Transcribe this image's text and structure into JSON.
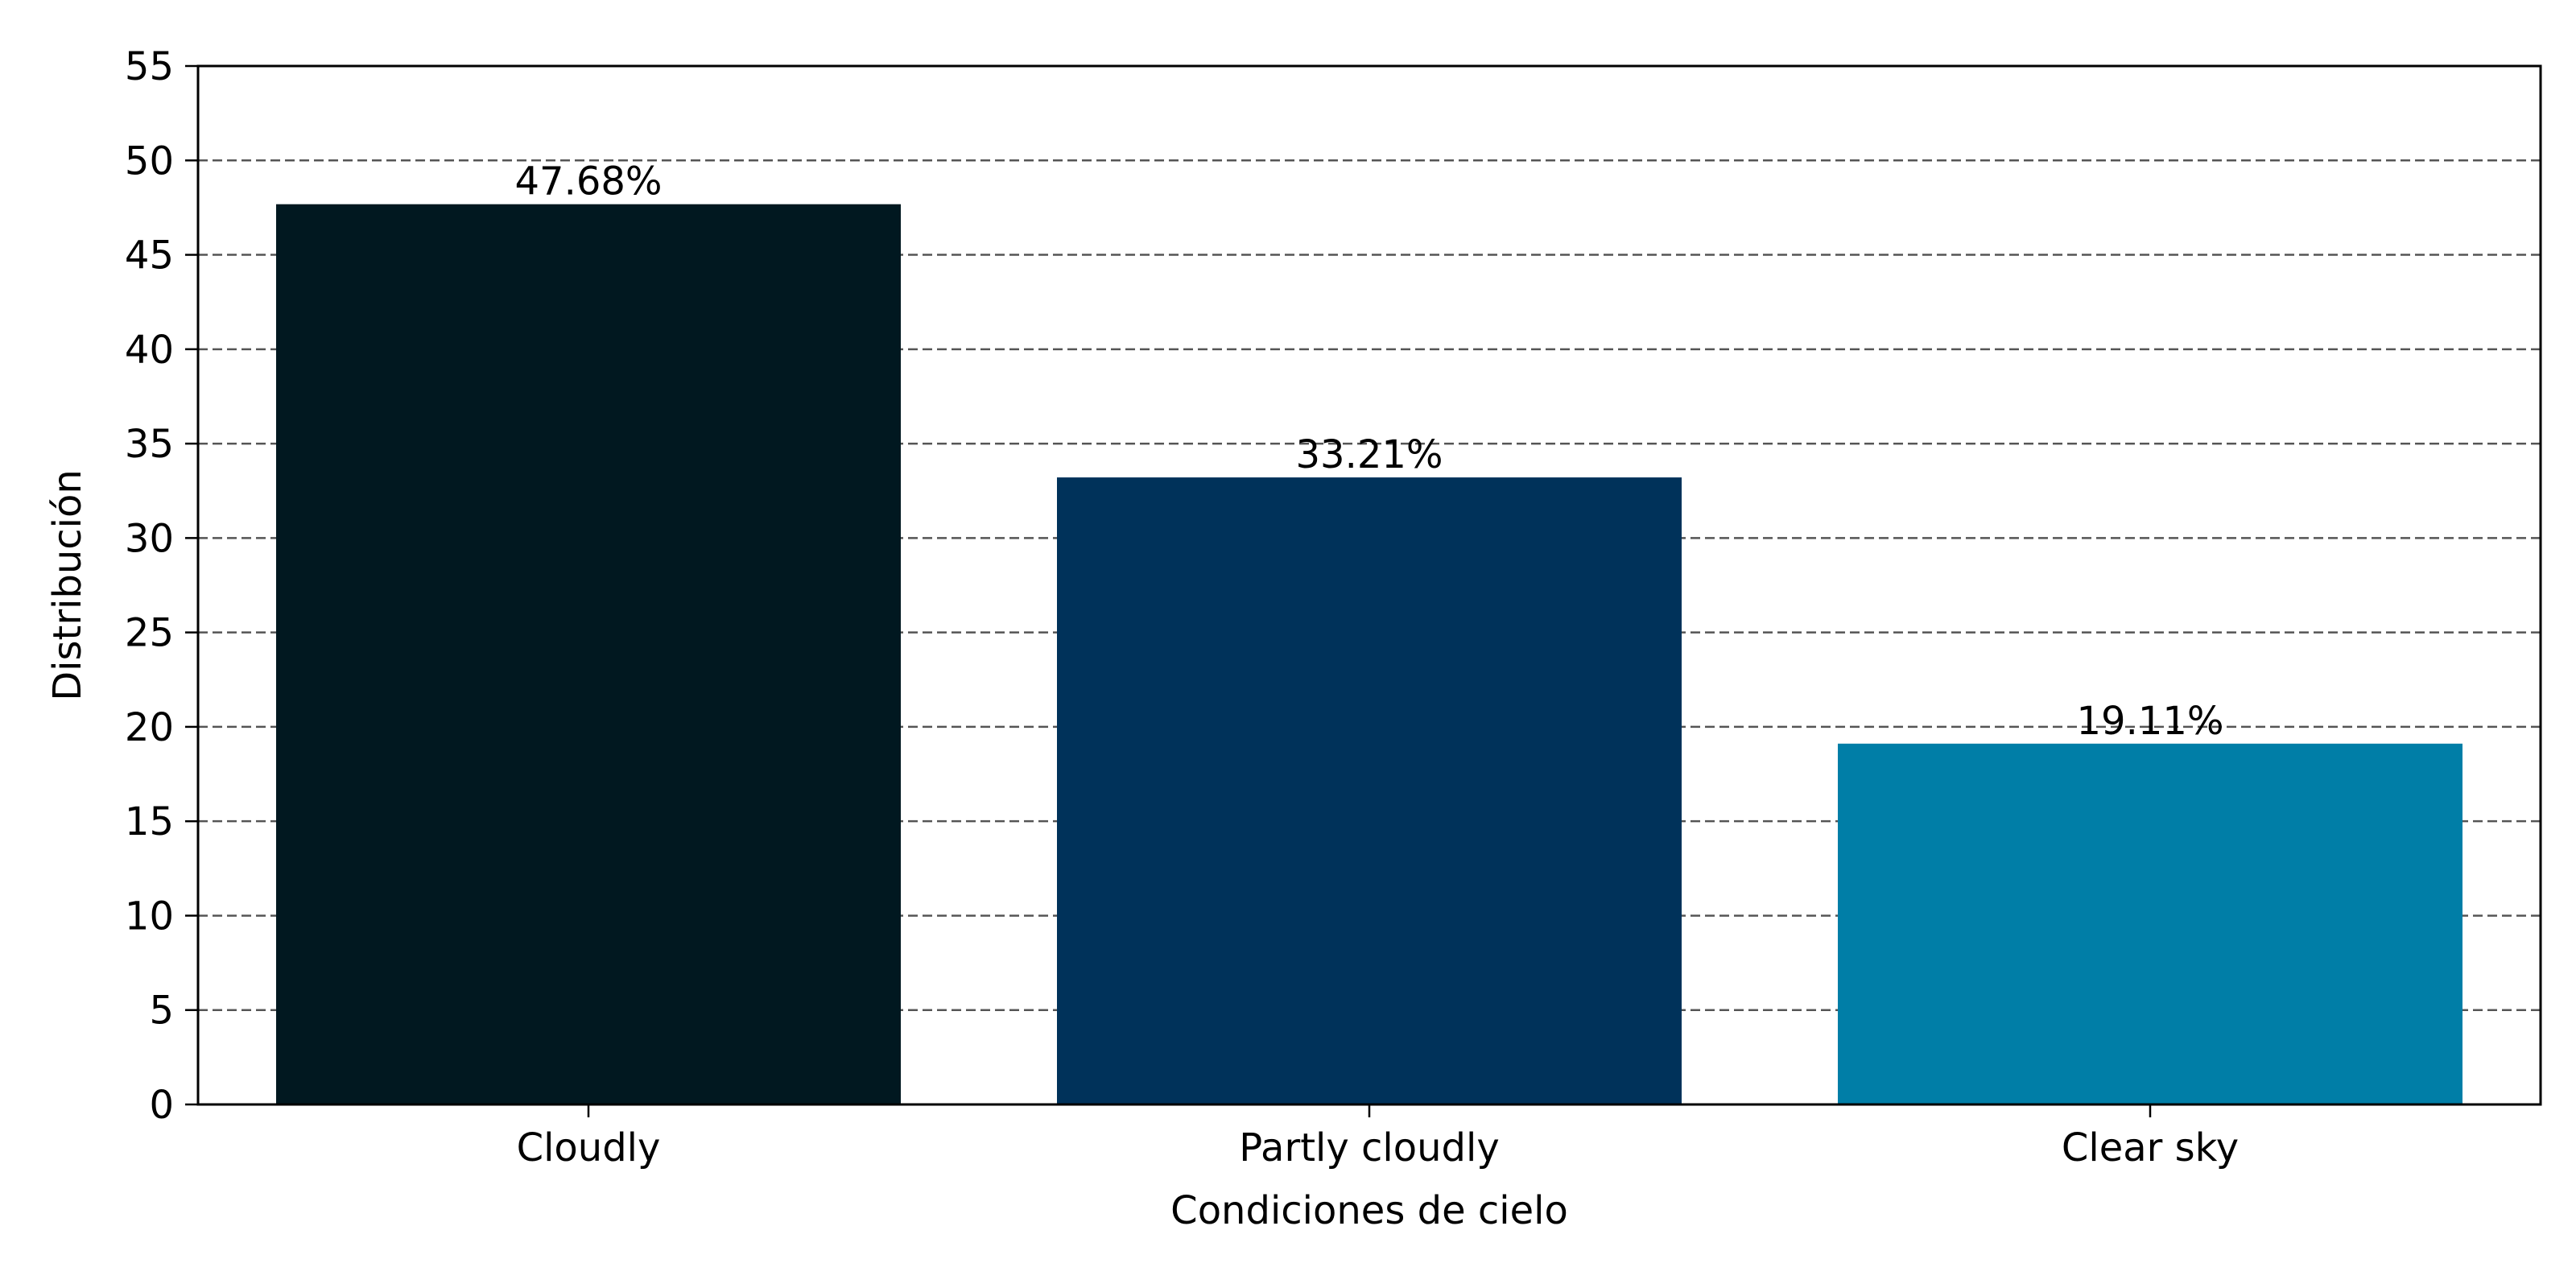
{
  "chart_data": {
    "type": "bar",
    "categories": [
      "Cloudly",
      "Partly cloudly",
      "Clear sky"
    ],
    "values": [
      47.68,
      33.21,
      19.11
    ],
    "data_labels": [
      "47.68%",
      "33.21%",
      "19.11%"
    ],
    "colors": [
      "#011820",
      "#00325A",
      "#007EA7"
    ],
    "xlabel": "Condiciones de cielo",
    "ylabel": "Distribución",
    "ylim": [
      0,
      55
    ],
    "yticks": [
      0,
      5,
      10,
      15,
      20,
      25,
      30,
      35,
      40,
      45,
      50,
      55
    ],
    "grid": "horizontal-dashed",
    "legend": "none"
  }
}
